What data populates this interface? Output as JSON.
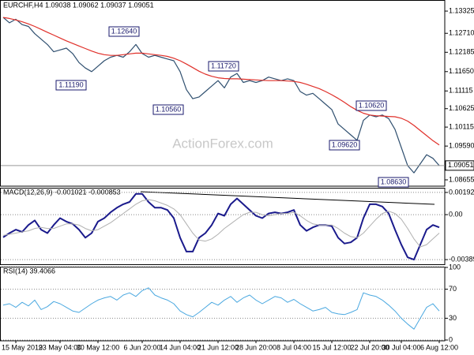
{
  "chart_data": [
    {
      "type": "line",
      "title": "EURCHF,H4  1.09038 1.09062 1.09037 1.09051",
      "watermark": "ActionForex.com",
      "series": [
        {
          "color": "#2f4f6f",
          "values": [
            1.1315,
            1.13,
            1.131,
            1.1295,
            1.129,
            1.127,
            1.1255,
            1.124,
            1.122,
            1.1225,
            1.123,
            1.1215,
            1.119,
            1.1175,
            1.1165,
            1.118,
            1.1195,
            1.1205,
            1.121,
            1.1205,
            1.122,
            1.124,
            1.1215,
            1.1205,
            1.121,
            1.1205,
            1.12,
            1.1195,
            1.1165,
            1.1115,
            1.109,
            1.1095,
            1.111,
            1.1125,
            1.114,
            1.112,
            1.115,
            1.116,
            1.1135,
            1.114,
            1.1135,
            1.114,
            1.115,
            1.1145,
            1.114,
            1.1145,
            1.114,
            1.111,
            1.11,
            1.1105,
            1.109,
            1.1075,
            1.106,
            1.102,
            1.1005,
            1.099,
            1.0975,
            1.103,
            1.1045,
            1.104,
            1.1045,
            1.1035,
            1.1005,
            1.0955,
            1.0905,
            1.0885,
            1.091,
            1.0935,
            1.0925,
            1.0905
          ]
        },
        {
          "color": "#e0302a",
          "values": [
            1.1315,
            1.1312,
            1.1308,
            1.1303,
            1.1297,
            1.129,
            1.1282,
            1.1274,
            1.1266,
            1.1258,
            1.125,
            1.1243,
            1.1236,
            1.1229,
            1.1222,
            1.1216,
            1.1212,
            1.121,
            1.121,
            1.1212,
            1.1214,
            1.1216,
            1.1216,
            1.1214,
            1.1212,
            1.121,
            1.1207,
            1.1202,
            1.1195,
            1.1186,
            1.1176,
            1.1166,
            1.1158,
            1.1152,
            1.1148,
            1.1146,
            1.1145,
            1.1145,
            1.1144,
            1.1143,
            1.1142,
            1.1141,
            1.114,
            1.114,
            1.114,
            1.1139,
            1.1138,
            1.1135,
            1.113,
            1.1124,
            1.1118,
            1.111,
            1.1101,
            1.1091,
            1.108,
            1.1068,
            1.1058,
            1.105,
            1.1045,
            1.1043,
            1.1042,
            1.1041,
            1.104,
            1.1036,
            1.1028,
            1.1016,
            1.1002,
            1.0988,
            1.0974,
            1.0962
          ]
        }
      ],
      "annotations": [
        "1.12640",
        "1.11190",
        "1.10560",
        "1.11720",
        "1.10620",
        "1.09620",
        "1.08630"
      ],
      "last": {
        "value": 1.09051,
        "label": "1.09051"
      },
      "ylim": [
        1.0848,
        1.1361
      ],
      "yticks": [
        1.13325,
        {
          "value": 1.1271,
          "label": "1.12710"
        },
        1.12185,
        {
          "value": 1.1165,
          "label": "1.11650"
        },
        1.11115,
        1.10625,
        1.10115,
        {
          "value": 1.0959,
          "label": "1.09590"
        },
        1.08655
      ],
      "grid": false
    },
    {
      "type": "line",
      "title": "MACD(12,26,9) -0.001021 -0.000853",
      "series": [
        {
          "color": "#1a1a8c",
          "width": 2,
          "values": [
            -0.00196,
            -0.0016,
            -0.0013,
            -0.0015,
            -0.0009,
            -0.0005,
            -0.0013,
            -0.0016,
            -0.0009,
            -0.0003,
            -0.0006,
            -0.0008,
            -0.0013,
            -0.002,
            -0.0016,
            -0.0006,
            -0.0003,
            0.0002,
            0.0006,
            0.0009,
            0.0011,
            0.0018,
            0.0018,
            0.0011,
            0.0006,
            0.0006,
            0.0004,
            -0.0003,
            -0.002,
            -0.0032,
            -0.0032,
            -0.002,
            -0.0016,
            -0.0009,
            0.0001,
            -0.0001,
            0.0009,
            0.0014,
            0.0009,
            0.0004,
            -0.0001,
            -0.0003,
            0.0001,
            0.0002,
            0.0001,
            0.0002,
            0.0004,
            -0.0009,
            -0.0014,
            -0.0011,
            -0.0009,
            -0.0009,
            -0.001,
            -0.002,
            -0.0025,
            -0.0024,
            -0.002,
            -0.0003,
            0.0009,
            0.0009,
            0.0007,
            0.0001,
            -0.0013,
            -0.0026,
            -0.0037,
            -0.0039,
            -0.0026,
            -0.0013,
            -0.0009,
            -0.0011
          ]
        },
        {
          "color": "#b0b0b0",
          "width": 1,
          "values": [
            -0.0018,
            -0.0017,
            -0.0016,
            -0.0015,
            -0.0014,
            -0.0012,
            -0.0011,
            -0.0012,
            -0.0012,
            -0.001,
            -0.0008,
            -0.0008,
            -0.0009,
            -0.0012,
            -0.0014,
            -0.0013,
            -0.001,
            -0.0007,
            -0.0003,
            0.0001,
            0.0005,
            0.0009,
            0.0012,
            0.0013,
            0.0012,
            0.001,
            0.0008,
            0.0005,
            0,
            -0.0008,
            -0.0016,
            -0.0022,
            -0.0023,
            -0.0021,
            -0.0017,
            -0.0012,
            -0.0008,
            -0.0004,
            0,
            0.0002,
            0.0002,
            0,
            -0.0001,
            0,
            0.0001,
            0.0001,
            0.0002,
            -0.0001,
            -0.0005,
            -0.0008,
            -0.0009,
            -0.0009,
            -0.0009,
            -0.0012,
            -0.0016,
            -0.0019,
            -0.002,
            -0.0016,
            -0.001,
            -0.0004,
            0.0001,
            0.0003,
            0.0001,
            -0.0004,
            -0.0012,
            -0.0021,
            -0.0028,
            -0.0026,
            -0.0021,
            -0.0016
          ]
        }
      ],
      "ylim": [
        -0.0043,
        0.00226
      ],
      "yticks": [
        0.001923,
        {
          "value": 0,
          "label": "0.00"
        },
        -0.003896
      ],
      "grid": true
    },
    {
      "type": "line",
      "title": "RSI(14) 39.4066",
      "categories": [
        null,
        null,
        "15 May 2019",
        null,
        null,
        null,
        null,
        null,
        null,
        "23 May 04:00",
        null,
        null,
        null,
        null,
        null,
        "30 May 12:00",
        null,
        null,
        null,
        null,
        null,
        null,
        "6 Jun 20:00",
        null,
        null,
        null,
        null,
        null,
        "14 Jun 04:00",
        null,
        null,
        null,
        null,
        null,
        "21 Jun 12:00",
        null,
        null,
        null,
        null,
        null,
        "28 Jun 20:00",
        null,
        null,
        null,
        null,
        null,
        "8 Jul 04:00",
        null,
        null,
        null,
        null,
        null,
        "15 Jul 12:00",
        null,
        null,
        null,
        null,
        null,
        "22 Jul 20:00",
        null,
        null,
        null,
        null,
        "30 Jul 04:00",
        null,
        null,
        null,
        null,
        null,
        "6 Aug 12:00"
      ],
      "series": [
        {
          "color": "#4aa8e0",
          "width": 1,
          "values": [
            48,
            50,
            45,
            52,
            47,
            55,
            42,
            46,
            53,
            50,
            45,
            40,
            38,
            44,
            50,
            55,
            58,
            60,
            55,
            62,
            65,
            60,
            68,
            72,
            62,
            58,
            55,
            50,
            40,
            35,
            32,
            38,
            45,
            52,
            48,
            55,
            60,
            52,
            58,
            62,
            55,
            50,
            55,
            60,
            58,
            52,
            56,
            50,
            45,
            40,
            42,
            45,
            38,
            36,
            35,
            38,
            42,
            65,
            62,
            60,
            55,
            48,
            40,
            30,
            22,
            15,
            30,
            45,
            50,
            40
          ]
        }
      ],
      "ylim": [
        0,
        100
      ],
      "yticks": [
        100,
        70,
        30,
        0
      ],
      "grid": true
    }
  ]
}
